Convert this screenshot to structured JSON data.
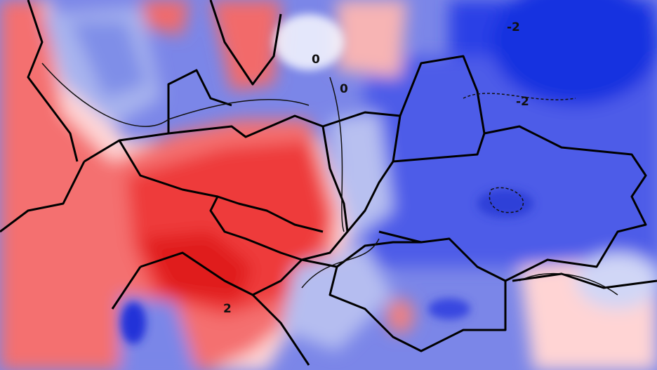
{
  "contour_labels": [
    "-2",
    "-2",
    "0",
    "0",
    "2"
  ]
}
